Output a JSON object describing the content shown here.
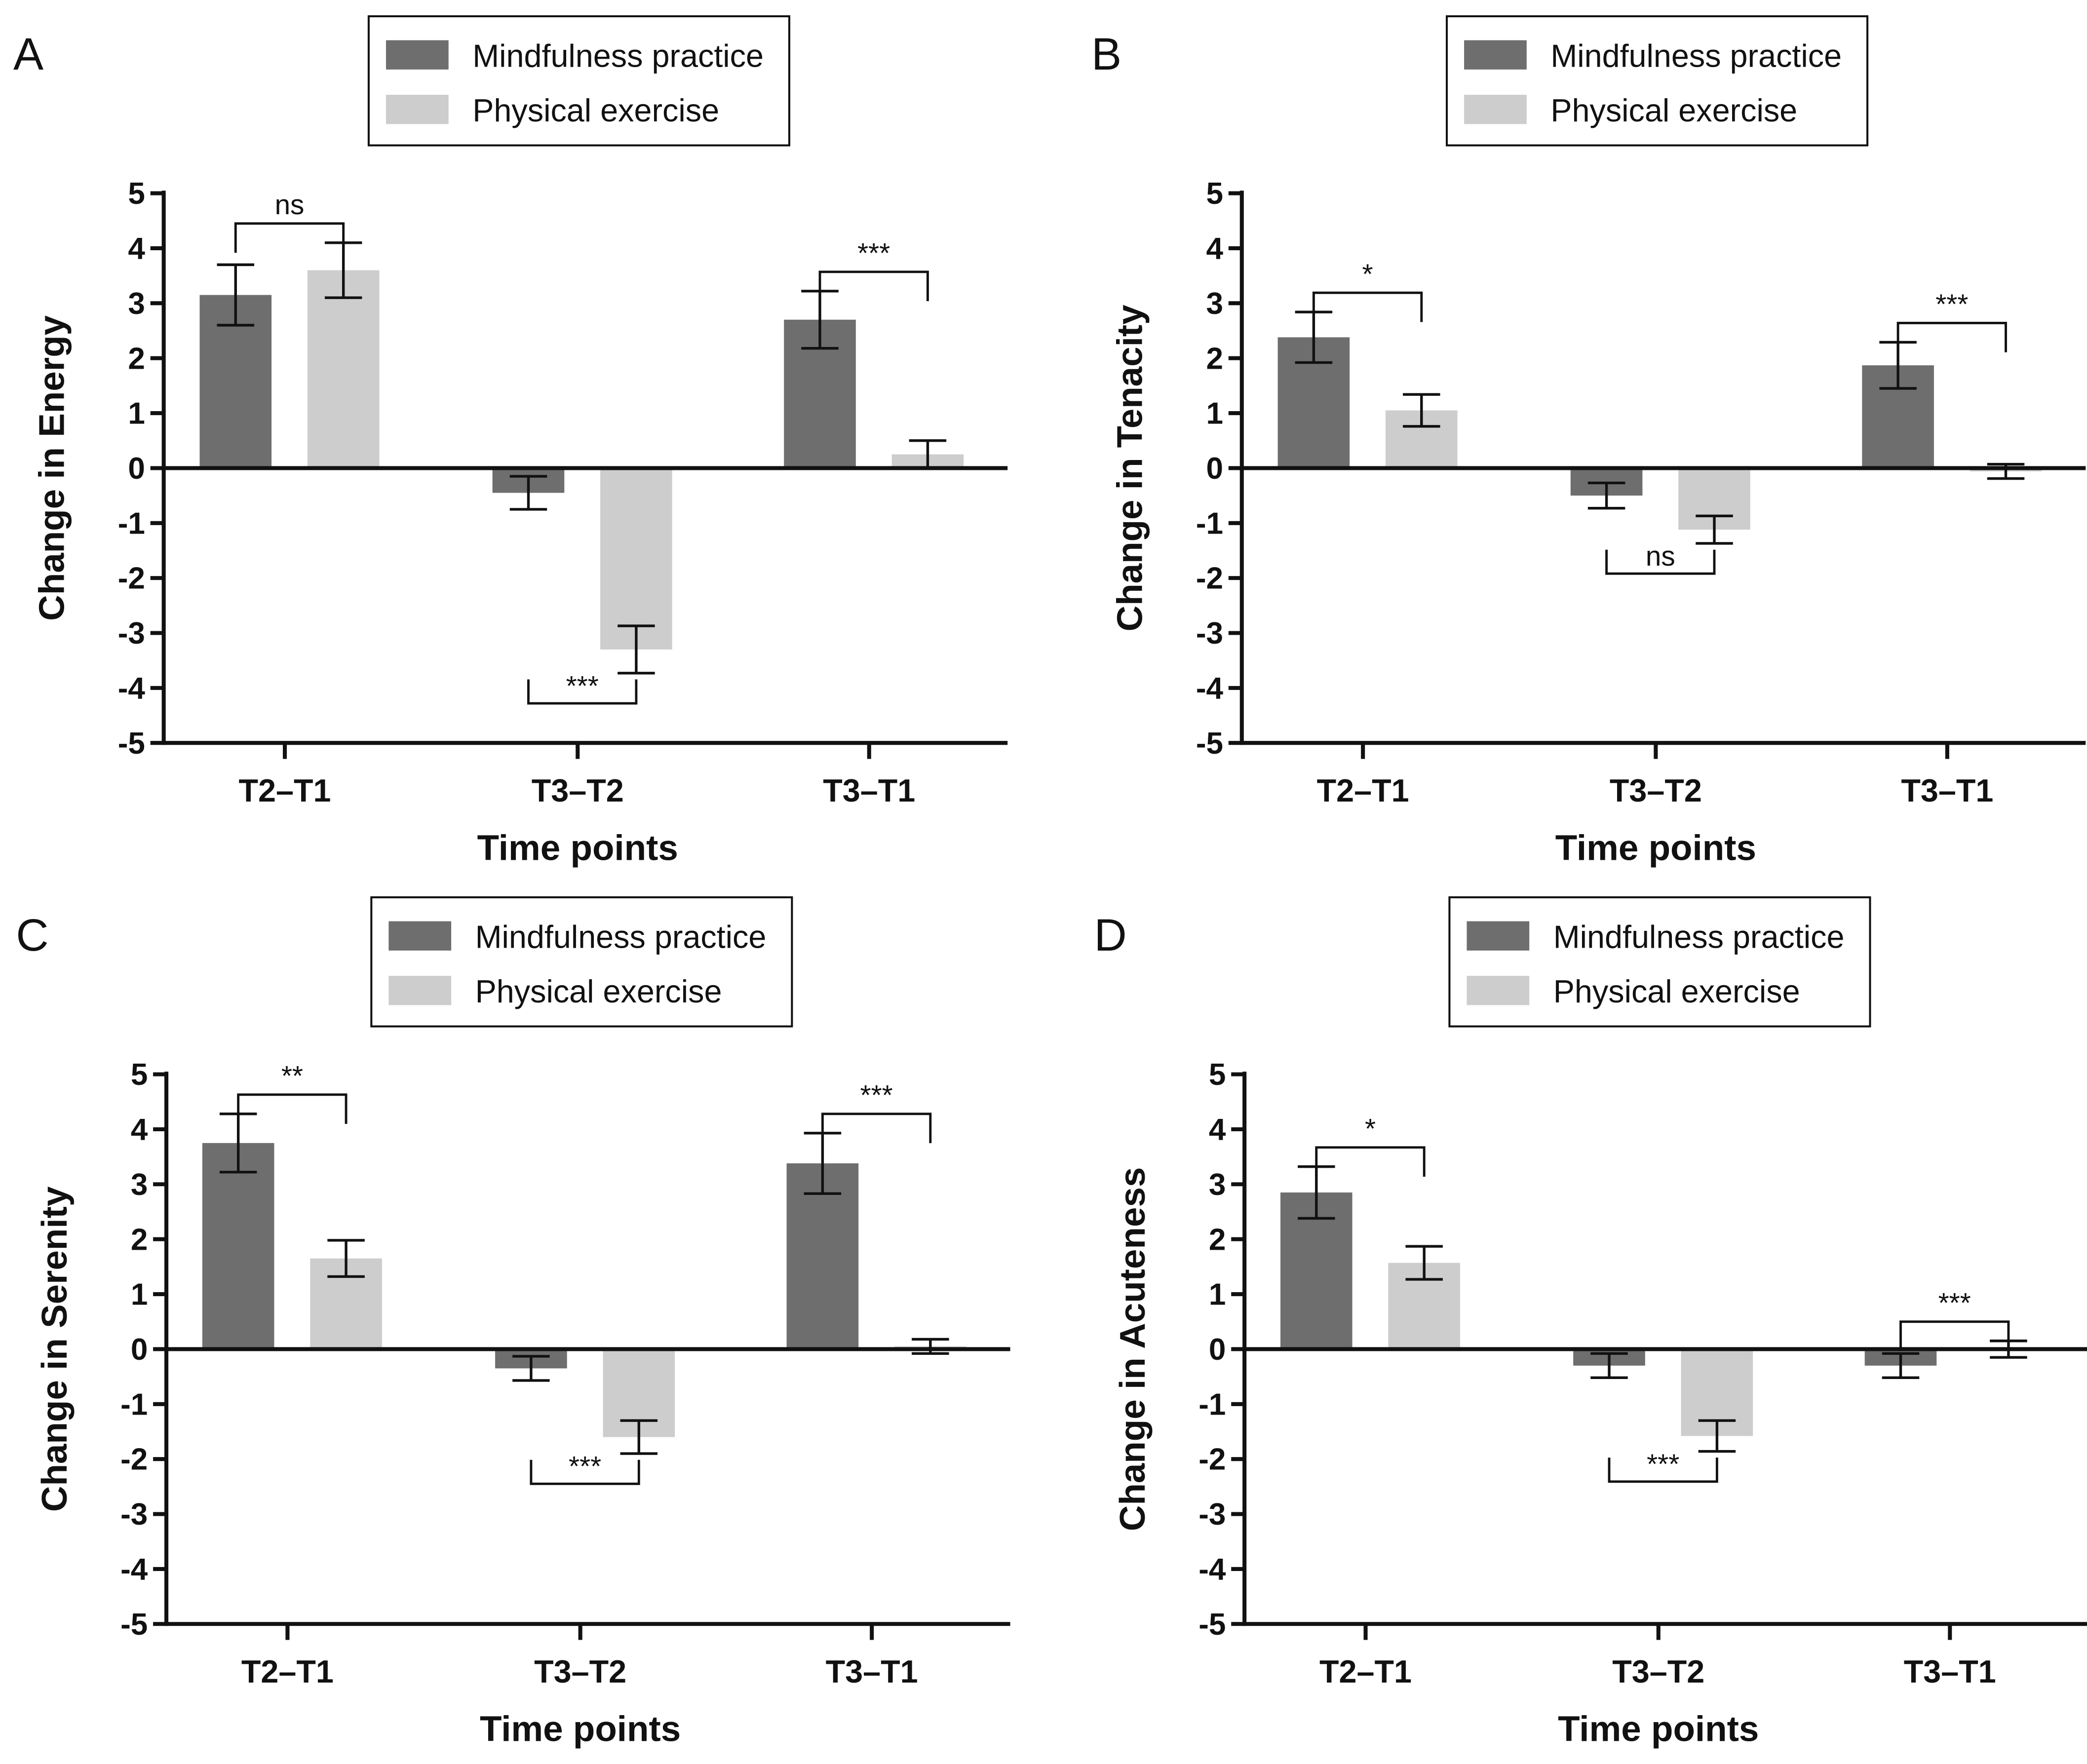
{
  "colors": {
    "mindfulness": "#6e6e6e",
    "physical": "#cdcdcd",
    "axis": "#111111"
  },
  "legend": [
    "Mindfulness practice",
    "Physical exercise"
  ],
  "chart_data": [
    {
      "type": "bar",
      "panel": "A",
      "ylabel": "Change in Energy",
      "xlabel": "Time points",
      "categories": [
        "T2–T1",
        "T3–T2",
        "T3–T1"
      ],
      "ylim": [
        -5,
        5
      ],
      "yticks": [
        "5",
        "4",
        "3",
        "2",
        "1",
        "0",
        "-1",
        "-2",
        "-3",
        "-4",
        "-5"
      ],
      "series": [
        {
          "name": "Mindfulness practice",
          "values": [
            3.15,
            -0.45,
            2.7
          ],
          "errors": [
            0.55,
            0.3,
            0.52
          ]
        },
        {
          "name": "Physical exercise",
          "values": [
            3.6,
            -3.3,
            0.25
          ],
          "errors": [
            0.5,
            0.43,
            0.25
          ]
        }
      ],
      "significance": [
        {
          "label": "ns",
          "position": "above"
        },
        {
          "label": "***",
          "position": "below"
        },
        {
          "label": "***",
          "position": "above"
        }
      ]
    },
    {
      "type": "bar",
      "panel": "B",
      "ylabel": "Change in Tenacity",
      "xlabel": "Time points",
      "categories": [
        "T2–T1",
        "T3–T2",
        "T3–T1"
      ],
      "ylim": [
        -5,
        5
      ],
      "yticks": [
        "5",
        "4",
        "3",
        "2",
        "1",
        "0",
        "-1",
        "-2",
        "-3",
        "-4",
        "-5"
      ],
      "series": [
        {
          "name": "Mindfulness practice",
          "values": [
            2.38,
            -0.5,
            1.87
          ],
          "errors": [
            0.46,
            0.23,
            0.42
          ]
        },
        {
          "name": "Physical exercise",
          "values": [
            1.05,
            -1.12,
            -0.06
          ],
          "errors": [
            0.29,
            0.25,
            0.13
          ]
        }
      ],
      "significance": [
        {
          "label": "*",
          "position": "above"
        },
        {
          "label": "ns",
          "position": "below"
        },
        {
          "label": "***",
          "position": "above"
        }
      ]
    },
    {
      "type": "bar",
      "panel": "C",
      "ylabel": "Change in Serenity",
      "xlabel": "Time points",
      "categories": [
        "T2–T1",
        "T3–T2",
        "T3–T1"
      ],
      "ylim": [
        -5,
        5
      ],
      "yticks": [
        "5",
        "4",
        "3",
        "2",
        "1",
        "0",
        "-1",
        "-2",
        "-3",
        "-4",
        "-5"
      ],
      "series": [
        {
          "name": "Mindfulness practice",
          "values": [
            3.75,
            -0.35,
            3.38
          ],
          "errors": [
            0.53,
            0.22,
            0.55
          ]
        },
        {
          "name": "Physical exercise",
          "values": [
            1.65,
            -1.6,
            0.05
          ],
          "errors": [
            0.33,
            0.3,
            0.13
          ]
        }
      ],
      "significance": [
        {
          "label": "**",
          "position": "above"
        },
        {
          "label": "***",
          "position": "below"
        },
        {
          "label": "***",
          "position": "above"
        }
      ]
    },
    {
      "type": "bar",
      "panel": "D",
      "ylabel": "Change in Acuteness",
      "xlabel": "Time points",
      "categories": [
        "T2–T1",
        "T3–T2",
        "T3–T1"
      ],
      "ylim": [
        -5,
        5
      ],
      "yticks": [
        "5",
        "4",
        "3",
        "2",
        "1",
        "0",
        "-1",
        "-2",
        "-3",
        "-4",
        "-5"
      ],
      "series": [
        {
          "name": "Mindfulness practice",
          "values": [
            2.85,
            -0.3,
            -0.3
          ],
          "errors": [
            0.47,
            0.22,
            0.22
          ]
        },
        {
          "name": "Physical exercise",
          "values": [
            1.57,
            -1.58,
            0.0
          ],
          "errors": [
            0.3,
            0.28,
            0.15
          ]
        }
      ],
      "significance": [
        {
          "label": "*",
          "position": "above"
        },
        {
          "label": "***",
          "position": "below"
        },
        {
          "label": "***",
          "position": "above"
        }
      ]
    }
  ]
}
